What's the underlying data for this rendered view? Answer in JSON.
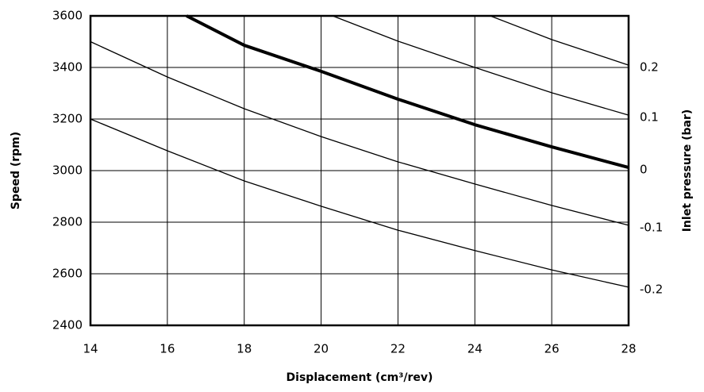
{
  "chart_data": {
    "type": "line",
    "xlabel": "Displacement (cm³/rev)",
    "ylabel": "Speed (rpm)",
    "y2label": "Inlet pressure (bar)",
    "xlim": [
      14,
      28
    ],
    "xticks": [
      14,
      16,
      18,
      20,
      22,
      24,
      26,
      28
    ],
    "ylim": [
      2400,
      3600
    ],
    "yticks": [
      2400,
      2600,
      2800,
      3000,
      3200,
      3400,
      3600
    ],
    "grid": true,
    "series": [
      {
        "name": "0.2",
        "color": "#000000",
        "line_width": 1.3,
        "x": [
          24.4,
          26,
          28
        ],
        "values": [
          3600,
          3508,
          3409
        ]
      },
      {
        "name": "0.1",
        "color": "#000000",
        "line_width": 1.3,
        "x": [
          20.3,
          22,
          24,
          26,
          28
        ],
        "values": [
          3600,
          3502,
          3400,
          3302,
          3215
        ]
      },
      {
        "name": "0",
        "color": "#000000",
        "line_width": 4,
        "x": [
          16.5,
          18,
          20,
          22,
          24,
          26,
          28
        ],
        "values": [
          3600,
          3486,
          3385,
          3277,
          3178,
          3092,
          3012
        ]
      },
      {
        "name": "-0.1",
        "color": "#000000",
        "line_width": 1.3,
        "x": [
          14,
          16,
          18,
          20,
          22,
          24,
          26,
          28
        ],
        "values": [
          3500,
          3363,
          3240,
          3132,
          3034,
          2948,
          2865,
          2788
        ]
      },
      {
        "name": "-0.2",
        "color": "#000000",
        "line_width": 1.3,
        "x": [
          14,
          16,
          18,
          20,
          22,
          24,
          26,
          28
        ],
        "values": [
          3200,
          3077,
          2960,
          2862,
          2769,
          2690,
          2615,
          2548
        ]
      }
    ]
  }
}
